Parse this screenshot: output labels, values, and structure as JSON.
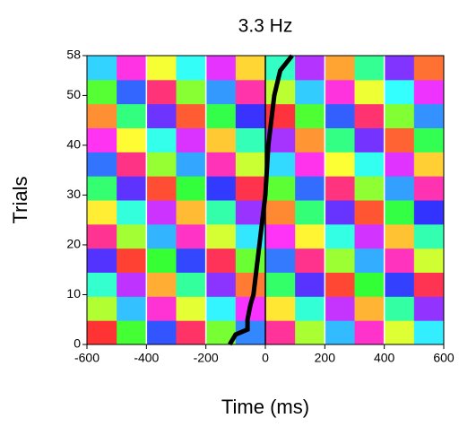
{
  "chart_data": {
    "type": "heatmap",
    "title": "3.3 Hz",
    "xlabel": "Time (ms)",
    "ylabel": "Trials",
    "xlim": [
      -600,
      600
    ],
    "ylim": [
      0,
      58
    ],
    "xticks": [
      -600,
      -400,
      -200,
      0,
      200,
      400,
      600
    ],
    "yticks": [
      0,
      10,
      20,
      30,
      40,
      50,
      58
    ],
    "vlines": [
      {
        "value": -400,
        "color": "#ffffff"
      },
      {
        "value": -200,
        "color": "#ffffff"
      },
      {
        "value": 0,
        "color": "#000000"
      },
      {
        "value": 200,
        "color": "#ffffff"
      },
      {
        "value": 400,
        "color": "#ffffff"
      }
    ],
    "z": [
      [
        0,
        115,
        230,
        345,
        100,
        215,
        330,
        85,
        200,
        315,
        70,
        185
      ],
      [
        83,
        198,
        313,
        68,
        183,
        298,
        53,
        168,
        283,
        38,
        153,
        268
      ],
      [
        166,
        281,
        36,
        151,
        266,
        21,
        136,
        251,
        6,
        121,
        236,
        351
      ],
      [
        249,
        4,
        119,
        234,
        349,
        104,
        219,
        334,
        89,
        204,
        319,
        74
      ],
      [
        332,
        87,
        202,
        317,
        72,
        187,
        302,
        57,
        172,
        287,
        42,
        157
      ],
      [
        55,
        170,
        285,
        40,
        155,
        270,
        25,
        140,
        255,
        10,
        125,
        240
      ],
      [
        138,
        253,
        8,
        123,
        238,
        353,
        108,
        223,
        338,
        93,
        208,
        323
      ],
      [
        221,
        336,
        91,
        206,
        321,
        76,
        191,
        306,
        61,
        176,
        291,
        46
      ],
      [
        304,
        59,
        174,
        289,
        44,
        159,
        274,
        29,
        144,
        259,
        14,
        129
      ],
      [
        27,
        142,
        257,
        12,
        127,
        242,
        357,
        112,
        227,
        342,
        97,
        212
      ],
      [
        110,
        225,
        340,
        95,
        210,
        325,
        80,
        195,
        310,
        65,
        180,
        295
      ],
      [
        193,
        308,
        63,
        178,
        293,
        48,
        163,
        278,
        33,
        148,
        263,
        18
      ]
    ],
    "line": {
      "color": "#000000",
      "x": [
        -120,
        -100,
        -60,
        -60,
        -50,
        -40,
        -30,
        -20,
        -10,
        0,
        10,
        20,
        30,
        50,
        90
      ],
      "y": [
        0,
        2,
        3,
        5,
        8,
        10,
        15,
        20,
        25,
        30,
        40,
        45,
        50,
        55,
        58
      ]
    }
  }
}
